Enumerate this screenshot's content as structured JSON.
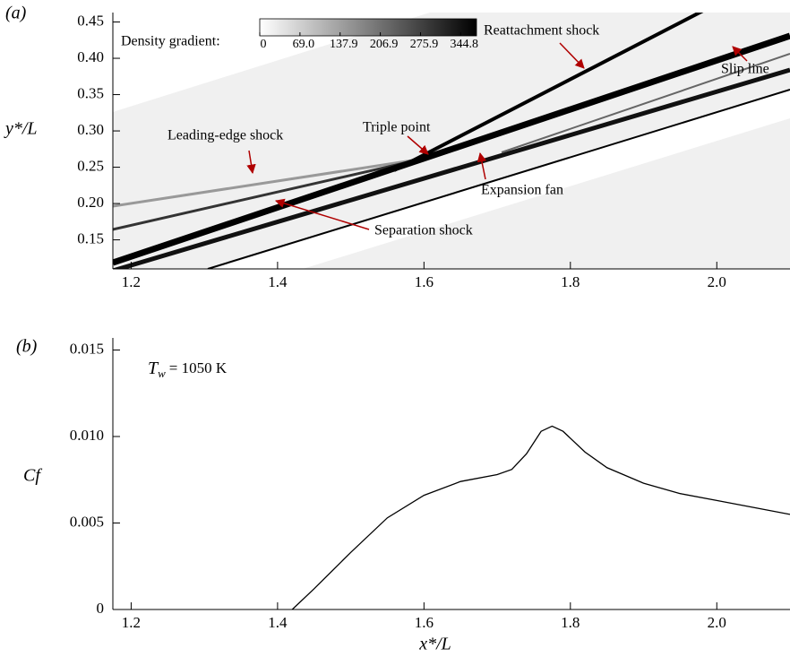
{
  "chart_data": [
    {
      "type": "contour",
      "panel_label": "(a)",
      "ylabel": "y*/L",
      "xlim": [
        1.175,
        2.1
      ],
      "xticks": [
        1.2,
        1.4,
        1.6,
        1.8,
        {
          "value": 2,
          "label": "2.0"
        }
      ],
      "ylim": [
        0.11,
        0.463
      ],
      "yticks": [
        0.15,
        {
          "value": 0.2,
          "label": "0.20"
        },
        0.25,
        {
          "value": 0.3,
          "label": "0.30"
        },
        0.35,
        {
          "value": 0.4,
          "label": "0.40"
        },
        0.45
      ],
      "colorbar": {
        "label": "Density gradient:",
        "clim": [
          0,
          372
        ],
        "ticks": [
          0,
          {
            "value": 69,
            "label": "69.0"
          },
          137.9,
          206.9,
          275.9,
          344.8
        ],
        "colors": [
          "#ffffff",
          "#000000"
        ]
      },
      "annotations": [
        "Reattachment shock",
        "Slip line",
        "Triple point",
        "Leading-edge shock",
        "Expansion fan",
        "Separation shock"
      ],
      "arrow_color": "#b00000"
    },
    {
      "type": "line",
      "panel_label": "(b)",
      "ylabel": "Cf",
      "xlabel": "x*/L",
      "annotation": {
        "symbol": "T",
        "subscript": "w",
        "text": "= 1050 K"
      },
      "xlim": [
        1.175,
        2.1
      ],
      "xticks": [
        1.2,
        1.4,
        1.6,
        1.8,
        {
          "value": 2,
          "label": "2.0"
        }
      ],
      "ylim": [
        0,
        0.0157
      ],
      "yticks": [
        0,
        0.005,
        {
          "value": 0.01,
          "label": "0.010"
        },
        0.015
      ],
      "color": "#000000",
      "x": [
        1.42,
        1.45,
        1.5,
        1.55,
        1.6,
        1.65,
        1.7,
        1.72,
        1.74,
        1.76,
        1.775,
        1.79,
        1.82,
        1.85,
        1.9,
        1.95,
        2.0,
        2.05,
        2.1
      ],
      "values": [
        0,
        0.0012,
        0.0033,
        0.0053,
        0.0066,
        0.0074,
        0.0078,
        0.0081,
        0.009,
        0.0103,
        0.0106,
        0.0103,
        0.0091,
        0.0082,
        0.0073,
        0.0067,
        0.0063,
        0.0059,
        0.0055
      ]
    }
  ]
}
